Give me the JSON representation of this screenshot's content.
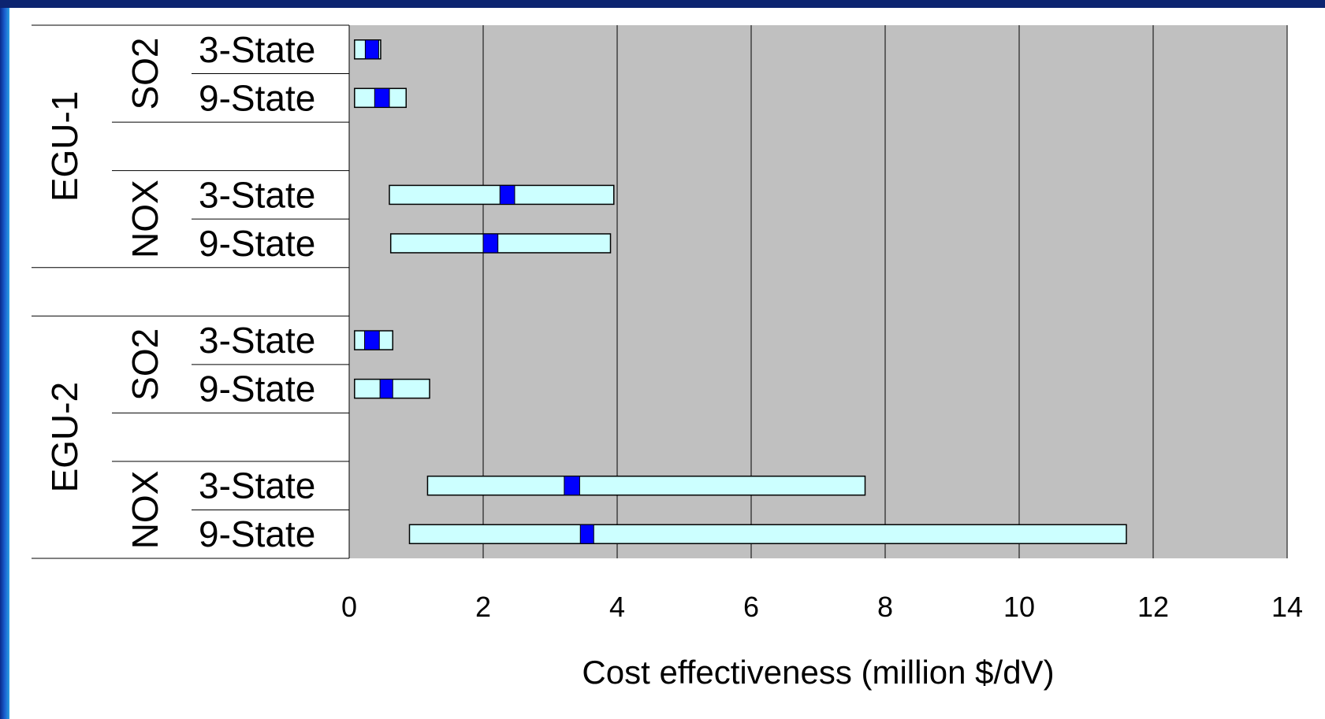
{
  "chart_data": {
    "type": "bar",
    "orientation": "horizontal",
    "style": "floating range bars with central estimate marker",
    "xlabel": "Cost effectiveness (million $/dV)",
    "xlim": [
      0,
      14
    ],
    "xticks": [
      0,
      2,
      4,
      6,
      8,
      10,
      12,
      14
    ],
    "grid": "vertical",
    "colors": {
      "range": "#ccffff",
      "estimate": "#0000ff",
      "plot_background": "#c0c0c0"
    },
    "rows": [
      {
        "unit": "EGU-1",
        "pollutant": "SO2",
        "label": "3-State",
        "low": 0.08,
        "high": 0.47,
        "mid_low": 0.24,
        "mid_high": 0.44
      },
      {
        "unit": "EGU-1",
        "pollutant": "SO2",
        "label": "9-State",
        "low": 0.08,
        "high": 0.85,
        "mid_low": 0.38,
        "mid_high": 0.6
      },
      {
        "unit": "EGU-1",
        "pollutant": "NOX",
        "label": "3-State",
        "low": 0.6,
        "high": 3.95,
        "mid_low": 2.25,
        "mid_high": 2.47
      },
      {
        "unit": "EGU-1",
        "pollutant": "NOX",
        "label": "9-State",
        "low": 0.62,
        "high": 3.9,
        "mid_low": 2.0,
        "mid_high": 2.22
      },
      {
        "unit": "EGU-2",
        "pollutant": "SO2",
        "label": "3-State",
        "low": 0.08,
        "high": 0.65,
        "mid_low": 0.23,
        "mid_high": 0.45
      },
      {
        "unit": "EGU-2",
        "pollutant": "SO2",
        "label": "9-State",
        "low": 0.08,
        "high": 1.2,
        "mid_low": 0.46,
        "mid_high": 0.65
      },
      {
        "unit": "EGU-2",
        "pollutant": "NOX",
        "label": "3-State",
        "low": 1.17,
        "high": 7.7,
        "mid_low": 3.21,
        "mid_high": 3.44
      },
      {
        "unit": "EGU-2",
        "pollutant": "NOX",
        "label": "9-State",
        "low": 0.9,
        "high": 11.6,
        "mid_low": 3.45,
        "mid_high": 3.65
      }
    ],
    "units": [
      "EGU-1",
      "EGU-2"
    ],
    "pollutants": [
      "SO2",
      "NOX"
    ]
  }
}
